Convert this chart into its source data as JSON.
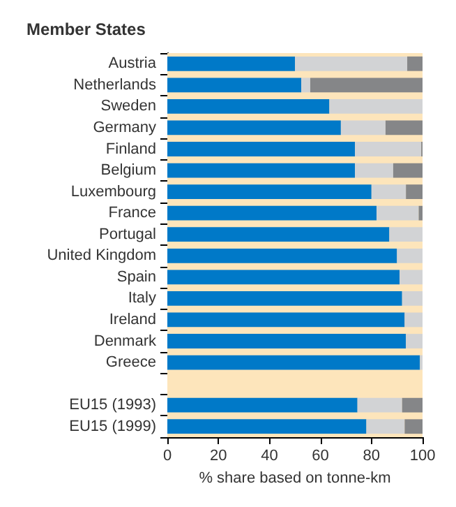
{
  "chart_data": {
    "type": "bar",
    "orientation": "horizontal",
    "stacked": true,
    "title": "Member States",
    "xlabel": "% share based on tonne-km",
    "categories": [
      "Austria",
      "Netherlands",
      "Sweden",
      "Germany",
      "Finland",
      "Belgium",
      "Luxembourg",
      "France",
      "Portugal",
      "United Kingdom",
      "Spain",
      "Italy",
      "Ireland",
      "Denmark",
      "Greece",
      null,
      "EU15 (1993)",
      "EU15 (1999)"
    ],
    "series": [
      {
        "color": "#0079c8",
        "values": [
          50,
          52.5,
          63.5,
          68,
          73.5,
          73.5,
          80,
          82,
          87,
          90,
          91,
          92,
          93,
          93.5,
          99,
          null,
          74.5,
          78
        ]
      },
      {
        "color": "#d2d3d5",
        "values": [
          44,
          3.5,
          36.5,
          17.5,
          26,
          15,
          13.5,
          16.5,
          13,
          10,
          9,
          8,
          7,
          6.5,
          1,
          null,
          17.5,
          15
        ]
      },
      {
        "color": "#858688",
        "values": [
          6,
          44,
          null,
          14.5,
          0.5,
          11.5,
          6.5,
          1.5,
          null,
          null,
          null,
          null,
          null,
          null,
          null,
          null,
          8,
          7
        ]
      }
    ],
    "xlim": [
      0,
      100
    ],
    "xticks": [
      0,
      20,
      40,
      60,
      80,
      100
    ],
    "grid": false,
    "bands": [
      {
        "axis": "x",
        "from": 0,
        "to": 100,
        "color": "#fde5bb"
      }
    ]
  }
}
